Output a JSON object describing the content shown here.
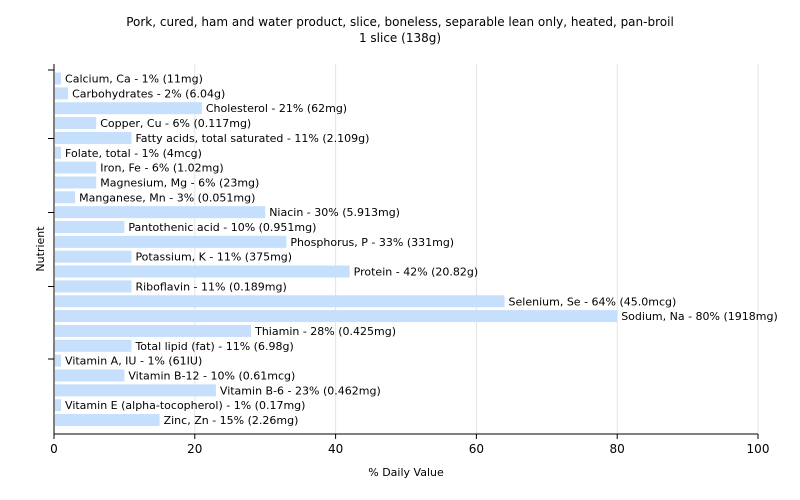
{
  "chart_data": {
    "type": "bar",
    "orientation": "horizontal",
    "title": "Pork, cured, ham and water product, slice, boneless, separable lean only, heated, pan-broil",
    "subtitle": "1 slice (138g)",
    "xlabel": "% Daily Value",
    "ylabel": "Nutrient",
    "xlim": [
      0,
      100
    ],
    "xticks": [
      0,
      20,
      40,
      60,
      80,
      100
    ],
    "grid": true,
    "bar_color": "#c6dffc",
    "categories": [
      "Calcium, Ca",
      "Carbohydrates",
      "Cholesterol",
      "Copper, Cu",
      "Fatty acids, total saturated",
      "Folate, total",
      "Iron, Fe",
      "Magnesium, Mg",
      "Manganese, Mn",
      "Niacin",
      "Pantothenic acid",
      "Phosphorus, P",
      "Potassium, K",
      "Protein",
      "Riboflavin",
      "Selenium, Se",
      "Sodium, Na",
      "Thiamin",
      "Total lipid (fat)",
      "Vitamin A, IU",
      "Vitamin B-12",
      "Vitamin B-6",
      "Vitamin E (alpha-tocopherol)",
      "Zinc, Zn"
    ],
    "values": [
      1,
      2,
      21,
      6,
      11,
      1,
      6,
      6,
      3,
      30,
      10,
      33,
      11,
      42,
      11,
      64,
      80,
      28,
      11,
      1,
      10,
      23,
      1,
      15
    ],
    "labels": [
      "Calcium, Ca - 1% (11mg)",
      "Carbohydrates - 2% (6.04g)",
      "Cholesterol - 21% (62mg)",
      "Copper, Cu - 6% (0.117mg)",
      "Fatty acids, total saturated - 11% (2.109g)",
      "Folate, total - 1% (4mcg)",
      "Iron, Fe - 6% (1.02mg)",
      "Magnesium, Mg - 6% (23mg)",
      "Manganese, Mn - 3% (0.051mg)",
      "Niacin - 30% (5.913mg)",
      "Pantothenic acid - 10% (0.951mg)",
      "Phosphorus, P - 33% (331mg)",
      "Potassium, K - 11% (375mg)",
      "Protein - 42% (20.82g)",
      "Riboflavin - 11% (0.189mg)",
      "Selenium, Se - 64% (45.0mcg)",
      "Sodium, Na - 80% (1918mg)",
      "Thiamin - 28% (0.425mg)",
      "Total lipid (fat) - 11% (6.98g)",
      "Vitamin A, IU - 1% (61IU)",
      "Vitamin B-12 - 10% (0.61mcg)",
      "Vitamin B-6 - 23% (0.462mg)",
      "Vitamin E (alpha-tocopherol) - 1% (0.17mg)",
      "Zinc, Zn - 15% (2.26mg)"
    ]
  }
}
